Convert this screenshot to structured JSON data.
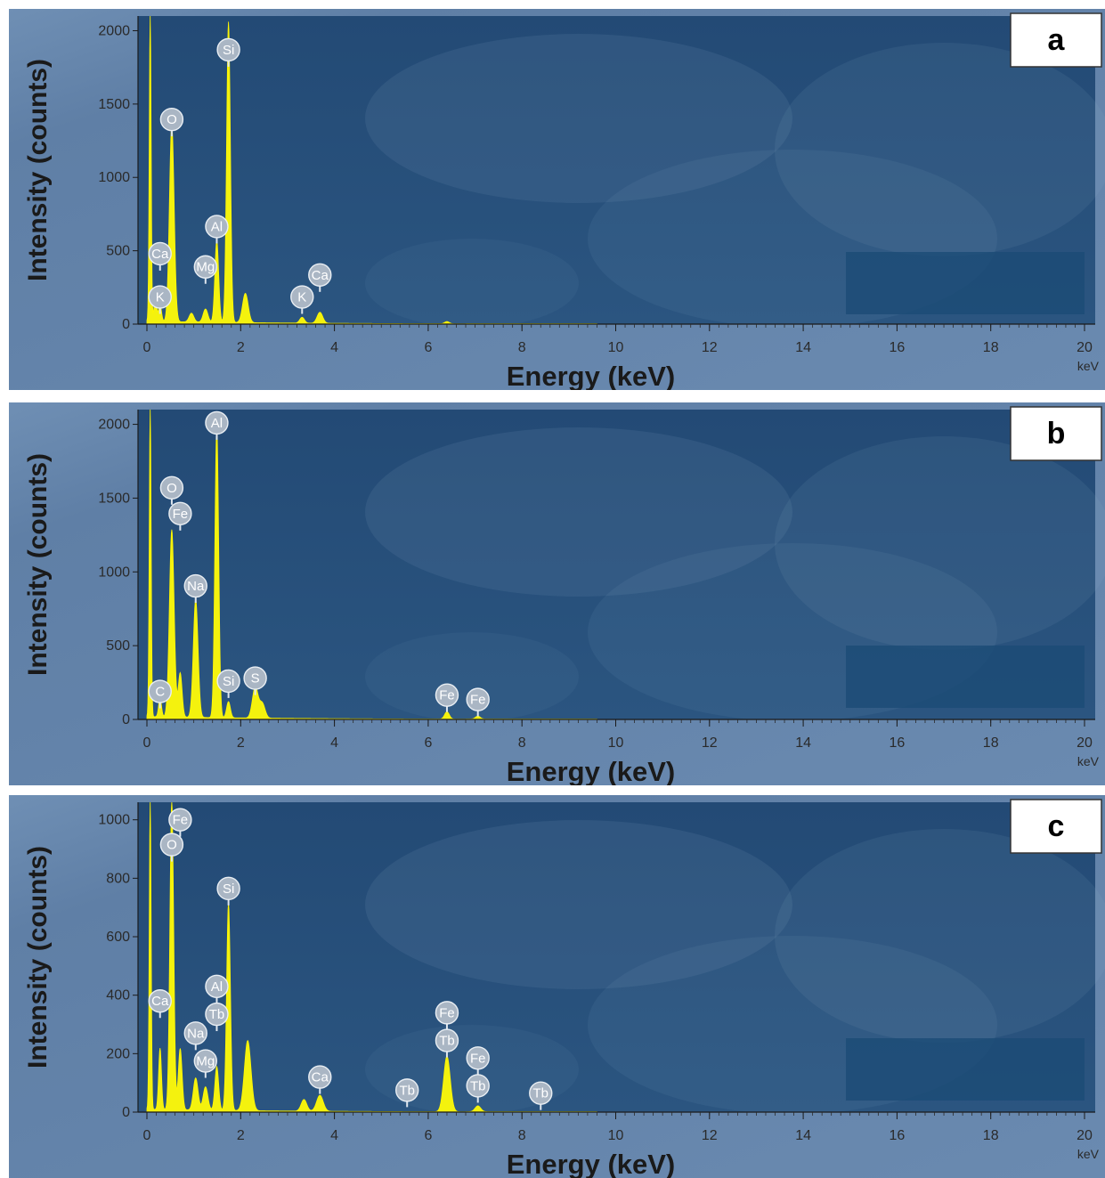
{
  "chart_data": [
    {
      "type": "area",
      "panel_label": "a",
      "xlabel": "Energy (keV)",
      "ylabel": "Intensity (counts)",
      "x_unit": "keV",
      "xlim": [
        0,
        20
      ],
      "ylim": [
        0,
        2100
      ],
      "x_ticks": [
        0,
        2,
        4,
        6,
        8,
        10,
        12,
        14,
        16,
        18,
        20
      ],
      "y_ticks": [
        0,
        500,
        1000,
        1500,
        2000
      ],
      "baseline": 20,
      "peaks": [
        {
          "x": 0.07,
          "y": 2100,
          "w": 0.02
        },
        {
          "x": 0.18,
          "y": 150,
          "w": 0.03
        },
        {
          "x": 0.28,
          "y": 120,
          "w": 0.03
        },
        {
          "x": 0.53,
          "y": 1350,
          "w": 0.05
        },
        {
          "x": 0.95,
          "y": 60,
          "w": 0.05
        },
        {
          "x": 1.25,
          "y": 90,
          "w": 0.05
        },
        {
          "x": 1.49,
          "y": 560,
          "w": 0.04
        },
        {
          "x": 1.74,
          "y": 2050,
          "w": 0.04
        },
        {
          "x": 2.1,
          "y": 200,
          "w": 0.06
        },
        {
          "x": 3.31,
          "y": 40,
          "w": 0.05
        },
        {
          "x": 3.69,
          "y": 75,
          "w": 0.06
        },
        {
          "x": 6.4,
          "y": 15,
          "w": 0.05
        }
      ],
      "annotations": [
        {
          "text": "Si",
          "x": 1.74,
          "y": 1870
        },
        {
          "text": "O",
          "x": 0.53,
          "y": 1395
        },
        {
          "text": "Al",
          "x": 1.49,
          "y": 665
        },
        {
          "text": "Ca",
          "x": 0.28,
          "y": 480
        },
        {
          "text": "Mg",
          "x": 1.25,
          "y": 390
        },
        {
          "text": "Ca",
          "x": 3.69,
          "y": 335
        },
        {
          "text": "K",
          "x": 0.28,
          "y": 185
        },
        {
          "text": "K",
          "x": 3.31,
          "y": 185
        }
      ]
    },
    {
      "type": "area",
      "panel_label": "b",
      "xlabel": "Energy (keV)",
      "ylabel": "Intensity (counts)",
      "x_unit": "keV",
      "xlim": [
        0,
        20
      ],
      "ylim": [
        0,
        2100
      ],
      "x_ticks": [
        0,
        2,
        4,
        6,
        8,
        10,
        12,
        14,
        16,
        18,
        20
      ],
      "y_ticks": [
        0,
        500,
        1000,
        1500,
        2000
      ],
      "baseline": 20,
      "peaks": [
        {
          "x": 0.07,
          "y": 2100,
          "w": 0.02
        },
        {
          "x": 0.28,
          "y": 130,
          "w": 0.03
        },
        {
          "x": 0.53,
          "y": 1270,
          "w": 0.05
        },
        {
          "x": 0.71,
          "y": 300,
          "w": 0.04
        },
        {
          "x": 1.04,
          "y": 800,
          "w": 0.05
        },
        {
          "x": 1.49,
          "y": 1980,
          "w": 0.04
        },
        {
          "x": 1.74,
          "y": 110,
          "w": 0.04
        },
        {
          "x": 2.31,
          "y": 210,
          "w": 0.06
        },
        {
          "x": 2.46,
          "y": 100,
          "w": 0.06
        },
        {
          "x": 6.4,
          "y": 50,
          "w": 0.05
        },
        {
          "x": 7.06,
          "y": 20,
          "w": 0.05
        }
      ],
      "annotations": [
        {
          "text": "Al",
          "x": 1.49,
          "y": 2010
        },
        {
          "text": "O",
          "x": 0.53,
          "y": 1570
        },
        {
          "text": "Fe",
          "x": 0.71,
          "y": 1395
        },
        {
          "text": "Na",
          "x": 1.04,
          "y": 905
        },
        {
          "text": "S",
          "x": 2.31,
          "y": 280
        },
        {
          "text": "Si",
          "x": 1.74,
          "y": 260
        },
        {
          "text": "C",
          "x": 0.28,
          "y": 190
        },
        {
          "text": "Fe",
          "x": 6.4,
          "y": 165
        },
        {
          "text": "Fe",
          "x": 7.06,
          "y": 135
        }
      ]
    },
    {
      "type": "area",
      "panel_label": "c",
      "xlabel": "Energy (keV)",
      "ylabel": "Intensity (counts)",
      "x_unit": "keV",
      "xlim": [
        0,
        20
      ],
      "ylim": [
        0,
        1060
      ],
      "x_ticks": [
        0,
        2,
        4,
        6,
        8,
        10,
        12,
        14,
        16,
        18,
        20
      ],
      "y_ticks": [
        0,
        200,
        400,
        600,
        800,
        1000
      ],
      "baseline": 10,
      "peaks": [
        {
          "x": 0.07,
          "y": 1060,
          "w": 0.02
        },
        {
          "x": 0.28,
          "y": 210,
          "w": 0.03
        },
        {
          "x": 0.53,
          "y": 1060,
          "w": 0.04
        },
        {
          "x": 0.71,
          "y": 210,
          "w": 0.04
        },
        {
          "x": 1.04,
          "y": 110,
          "w": 0.05
        },
        {
          "x": 1.25,
          "y": 80,
          "w": 0.05
        },
        {
          "x": 1.49,
          "y": 150,
          "w": 0.04
        },
        {
          "x": 1.74,
          "y": 710,
          "w": 0.04
        },
        {
          "x": 2.15,
          "y": 240,
          "w": 0.07
        },
        {
          "x": 3.35,
          "y": 40,
          "w": 0.06
        },
        {
          "x": 3.69,
          "y": 55,
          "w": 0.07
        },
        {
          "x": 6.4,
          "y": 190,
          "w": 0.07
        },
        {
          "x": 7.06,
          "y": 20,
          "w": 0.06
        }
      ],
      "annotations": [
        {
          "text": "Fe",
          "x": 0.71,
          "y": 1000
        },
        {
          "text": "O",
          "x": 0.53,
          "y": 915
        },
        {
          "text": "Si",
          "x": 1.74,
          "y": 765
        },
        {
          "text": "Al",
          "x": 1.49,
          "y": 430
        },
        {
          "text": "Ca",
          "x": 0.28,
          "y": 380
        },
        {
          "text": "Tb",
          "x": 1.49,
          "y": 335
        },
        {
          "text": "Fe",
          "x": 6.4,
          "y": 340
        },
        {
          "text": "Na",
          "x": 1.04,
          "y": 270
        },
        {
          "text": "Tb",
          "x": 6.4,
          "y": 245
        },
        {
          "text": "Mg",
          "x": 1.25,
          "y": 175
        },
        {
          "text": "Fe",
          "x": 7.06,
          "y": 185
        },
        {
          "text": "Ca",
          "x": 3.69,
          "y": 120
        },
        {
          "text": "Tb",
          "x": 7.06,
          "y": 90
        },
        {
          "text": "Tb",
          "x": 5.55,
          "y": 75
        },
        {
          "text": "Tb",
          "x": 8.4,
          "y": 65
        }
      ]
    }
  ]
}
